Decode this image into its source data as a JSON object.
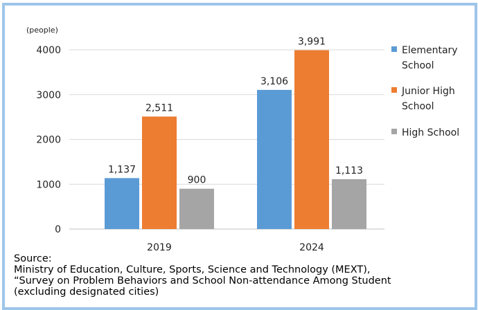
{
  "chart_data": {
    "type": "bar",
    "unit_label": "(people)",
    "categories": [
      "2019",
      "2024"
    ],
    "series": [
      {
        "name": "Elementary School",
        "values": [
          1137,
          3106
        ],
        "labels": [
          "1,137",
          "3,106"
        ],
        "color": "#5b9bd5"
      },
      {
        "name": "Junior High School",
        "values": [
          2511,
          3991
        ],
        "labels": [
          "2,511",
          "3,991"
        ],
        "color": "#ed7d31"
      },
      {
        "name": "High School",
        "values": [
          900,
          1113
        ],
        "labels": [
          "900",
          "1,113"
        ],
        "color": "#a5a5a5"
      }
    ],
    "legend_lines": [
      [
        "Elementary",
        "School"
      ],
      [
        "Junior High",
        "School"
      ],
      [
        "High School"
      ]
    ],
    "legend_position": "right",
    "ylim": [
      0,
      4000
    ],
    "yticks": [
      0,
      1000,
      2000,
      3000,
      4000
    ],
    "grid": true
  },
  "source": {
    "line1": "Source:",
    "line2": "Ministry of Education, Culture, Sports, Science and Technology (MEXT),",
    "line3": "“Survey on Problem Behaviors and School Non-attendance Among Student",
    "line4": "(excluding designated cities)"
  }
}
